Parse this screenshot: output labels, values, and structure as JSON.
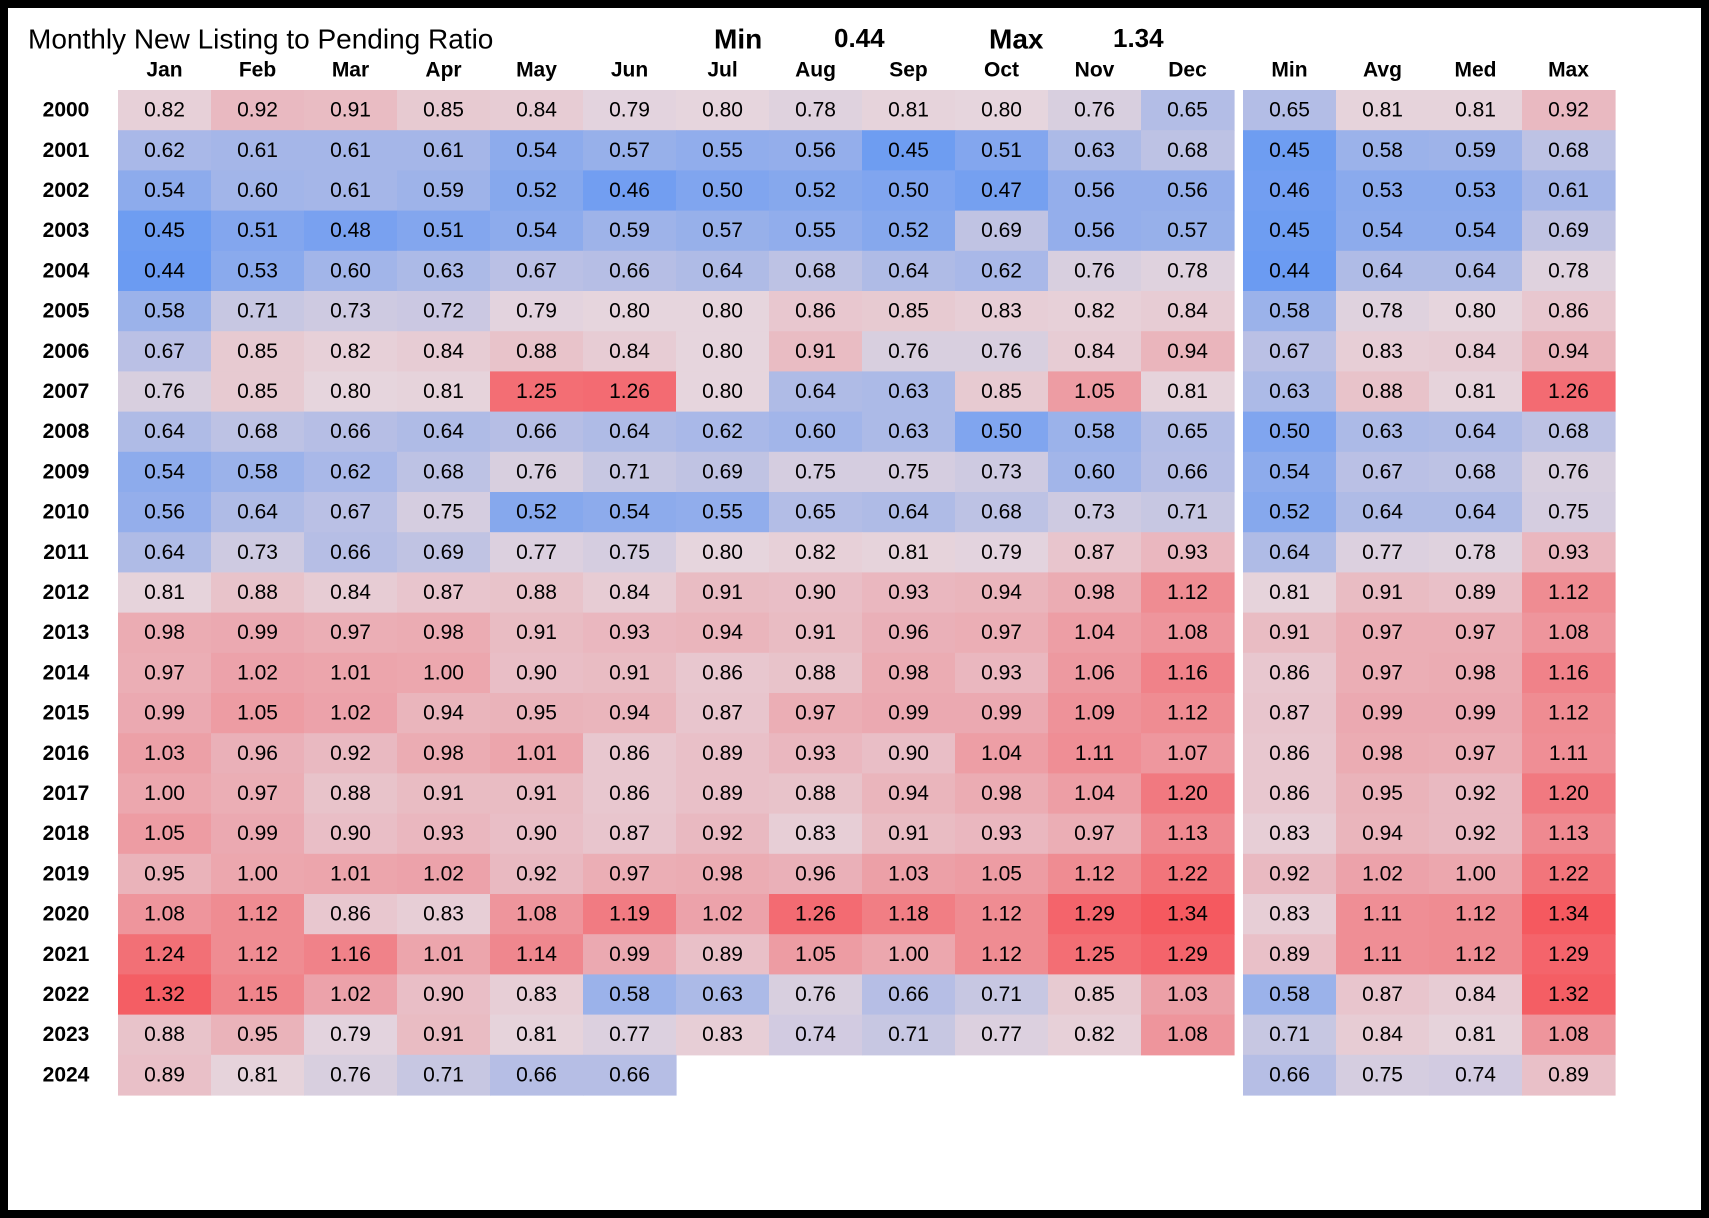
{
  "chart_data": {
    "type": "heatmap",
    "title": "Monthly New Listing to Pending Ratio",
    "min_label": "Min",
    "min_value": "0.44",
    "max_label": "Max",
    "max_value": "1.34",
    "months": [
      "Jan",
      "Feb",
      "Mar",
      "Apr",
      "May",
      "Jun",
      "Jul",
      "Aug",
      "Sep",
      "Oct",
      "Nov",
      "Dec"
    ],
    "summary_columns": [
      "Min",
      "Avg",
      "Med",
      "Max"
    ],
    "years": [
      "2000",
      "2001",
      "2002",
      "2003",
      "2004",
      "2005",
      "2006",
      "2007",
      "2008",
      "2009",
      "2010",
      "2011",
      "2012",
      "2013",
      "2014",
      "2015",
      "2016",
      "2017",
      "2018",
      "2019",
      "2020",
      "2021",
      "2022",
      "2023",
      "2024"
    ],
    "values": [
      [
        "0.82",
        "0.92",
        "0.91",
        "0.85",
        "0.84",
        "0.79",
        "0.80",
        "0.78",
        "0.81",
        "0.80",
        "0.76",
        "0.65"
      ],
      [
        "0.62",
        "0.61",
        "0.61",
        "0.61",
        "0.54",
        "0.57",
        "0.55",
        "0.56",
        "0.45",
        "0.51",
        "0.63",
        "0.68"
      ],
      [
        "0.54",
        "0.60",
        "0.61",
        "0.59",
        "0.52",
        "0.46",
        "0.50",
        "0.52",
        "0.50",
        "0.47",
        "0.56",
        "0.56"
      ],
      [
        "0.45",
        "0.51",
        "0.48",
        "0.51",
        "0.54",
        "0.59",
        "0.57",
        "0.55",
        "0.52",
        "0.69",
        "0.56",
        "0.57"
      ],
      [
        "0.44",
        "0.53",
        "0.60",
        "0.63",
        "0.67",
        "0.66",
        "0.64",
        "0.68",
        "0.64",
        "0.62",
        "0.76",
        "0.78"
      ],
      [
        "0.58",
        "0.71",
        "0.73",
        "0.72",
        "0.79",
        "0.80",
        "0.80",
        "0.86",
        "0.85",
        "0.83",
        "0.82",
        "0.84"
      ],
      [
        "0.67",
        "0.85",
        "0.82",
        "0.84",
        "0.88",
        "0.84",
        "0.80",
        "0.91",
        "0.76",
        "0.76",
        "0.84",
        "0.94"
      ],
      [
        "0.76",
        "0.85",
        "0.80",
        "0.81",
        "1.25",
        "1.26",
        "0.80",
        "0.64",
        "0.63",
        "0.85",
        "1.05",
        "0.81"
      ],
      [
        "0.64",
        "0.68",
        "0.66",
        "0.64",
        "0.66",
        "0.64",
        "0.62",
        "0.60",
        "0.63",
        "0.50",
        "0.58",
        "0.65"
      ],
      [
        "0.54",
        "0.58",
        "0.62",
        "0.68",
        "0.76",
        "0.71",
        "0.69",
        "0.75",
        "0.75",
        "0.73",
        "0.60",
        "0.66"
      ],
      [
        "0.56",
        "0.64",
        "0.67",
        "0.75",
        "0.52",
        "0.54",
        "0.55",
        "0.65",
        "0.64",
        "0.68",
        "0.73",
        "0.71"
      ],
      [
        "0.64",
        "0.73",
        "0.66",
        "0.69",
        "0.77",
        "0.75",
        "0.80",
        "0.82",
        "0.81",
        "0.79",
        "0.87",
        "0.93"
      ],
      [
        "0.81",
        "0.88",
        "0.84",
        "0.87",
        "0.88",
        "0.84",
        "0.91",
        "0.90",
        "0.93",
        "0.94",
        "0.98",
        "1.12"
      ],
      [
        "0.98",
        "0.99",
        "0.97",
        "0.98",
        "0.91",
        "0.93",
        "0.94",
        "0.91",
        "0.96",
        "0.97",
        "1.04",
        "1.08"
      ],
      [
        "0.97",
        "1.02",
        "1.01",
        "1.00",
        "0.90",
        "0.91",
        "0.86",
        "0.88",
        "0.98",
        "0.93",
        "1.06",
        "1.16"
      ],
      [
        "0.99",
        "1.05",
        "1.02",
        "0.94",
        "0.95",
        "0.94",
        "0.87",
        "0.97",
        "0.99",
        "0.99",
        "1.09",
        "1.12"
      ],
      [
        "1.03",
        "0.96",
        "0.92",
        "0.98",
        "1.01",
        "0.86",
        "0.89",
        "0.93",
        "0.90",
        "1.04",
        "1.11",
        "1.07"
      ],
      [
        "1.00",
        "0.97",
        "0.88",
        "0.91",
        "0.91",
        "0.86",
        "0.89",
        "0.88",
        "0.94",
        "0.98",
        "1.04",
        "1.20"
      ],
      [
        "1.05",
        "0.99",
        "0.90",
        "0.93",
        "0.90",
        "0.87",
        "0.92",
        "0.83",
        "0.91",
        "0.93",
        "0.97",
        "1.13"
      ],
      [
        "0.95",
        "1.00",
        "1.01",
        "1.02",
        "0.92",
        "0.97",
        "0.98",
        "0.96",
        "1.03",
        "1.05",
        "1.12",
        "1.22"
      ],
      [
        "1.08",
        "1.12",
        "0.86",
        "0.83",
        "1.08",
        "1.19",
        "1.02",
        "1.26",
        "1.18",
        "1.12",
        "1.29",
        "1.34"
      ],
      [
        "1.24",
        "1.12",
        "1.16",
        "1.01",
        "1.14",
        "0.99",
        "0.89",
        "1.05",
        "1.00",
        "1.12",
        "1.25",
        "1.29"
      ],
      [
        "1.32",
        "1.15",
        "1.02",
        "0.90",
        "0.83",
        "0.58",
        "0.63",
        "0.76",
        "0.66",
        "0.71",
        "0.85",
        "1.03"
      ],
      [
        "0.88",
        "0.95",
        "0.79",
        "0.91",
        "0.81",
        "0.77",
        "0.83",
        "0.74",
        "0.71",
        "0.77",
        "0.82",
        "1.08"
      ],
      [
        "0.89",
        "0.81",
        "0.76",
        "0.71",
        "0.66",
        "0.66",
        null,
        null,
        null,
        null,
        null,
        null
      ]
    ],
    "summary_values": [
      [
        "0.65",
        "0.81",
        "0.81",
        "0.92"
      ],
      [
        "0.45",
        "0.58",
        "0.59",
        "0.68"
      ],
      [
        "0.46",
        "0.53",
        "0.53",
        "0.61"
      ],
      [
        "0.45",
        "0.54",
        "0.54",
        "0.69"
      ],
      [
        "0.44",
        "0.64",
        "0.64",
        "0.78"
      ],
      [
        "0.58",
        "0.78",
        "0.80",
        "0.86"
      ],
      [
        "0.67",
        "0.83",
        "0.84",
        "0.94"
      ],
      [
        "0.63",
        "0.88",
        "0.81",
        "1.26"
      ],
      [
        "0.50",
        "0.63",
        "0.64",
        "0.68"
      ],
      [
        "0.54",
        "0.67",
        "0.68",
        "0.76"
      ],
      [
        "0.52",
        "0.64",
        "0.64",
        "0.75"
      ],
      [
        "0.64",
        "0.77",
        "0.78",
        "0.93"
      ],
      [
        "0.81",
        "0.91",
        "0.89",
        "1.12"
      ],
      [
        "0.91",
        "0.97",
        "0.97",
        "1.08"
      ],
      [
        "0.86",
        "0.97",
        "0.98",
        "1.16"
      ],
      [
        "0.87",
        "0.99",
        "0.99",
        "1.12"
      ],
      [
        "0.86",
        "0.98",
        "0.97",
        "1.11"
      ],
      [
        "0.86",
        "0.95",
        "0.92",
        "1.20"
      ],
      [
        "0.83",
        "0.94",
        "0.92",
        "1.13"
      ],
      [
        "0.92",
        "1.02",
        "1.00",
        "1.22"
      ],
      [
        "0.83",
        "1.11",
        "1.12",
        "1.34"
      ],
      [
        "0.89",
        "1.11",
        "1.12",
        "1.29"
      ],
      [
        "0.58",
        "0.87",
        "0.84",
        "1.32"
      ],
      [
        "0.71",
        "0.84",
        "0.81",
        "1.08"
      ],
      [
        "0.66",
        "0.75",
        "0.74",
        "0.89"
      ]
    ],
    "color_scale": {
      "low": "#6b9bf2",
      "mid": "#e6d5dd",
      "high": "#f5595f",
      "low_value": 0.44,
      "mid_value": 0.8,
      "high_value": 1.34
    },
    "grid": false,
    "legend": "none"
  }
}
